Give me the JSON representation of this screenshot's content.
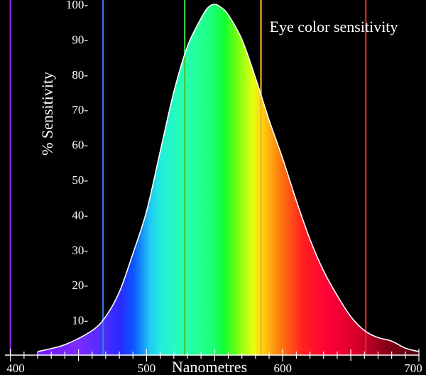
{
  "chart_data": {
    "type": "area",
    "title": "Eye color sensitivity",
    "xlabel": "Nanometres",
    "ylabel": "% Sensitivity",
    "xlim": [
      396,
      700
    ],
    "ylim": [
      0,
      100
    ],
    "x_ticks": [
      400,
      500,
      600,
      700
    ],
    "y_ticks": [
      10,
      20,
      30,
      40,
      50,
      60,
      70,
      80,
      90,
      100
    ],
    "y_tick_labels": [
      "10-",
      "20-",
      "30-",
      "40-",
      "50-",
      "60-",
      "70-",
      "80-",
      "90-",
      "100-"
    ],
    "grid": false,
    "series": [
      {
        "x": [
          420,
          440,
          460,
          470,
          480,
          490,
          500,
          510,
          520,
          530,
          540,
          545,
          550,
          555,
          560,
          570,
          580,
          590,
          600,
          610,
          620,
          630,
          640,
          650,
          660,
          670,
          680,
          690,
          700
        ],
        "values": [
          1,
          3,
          7,
          11,
          18,
          29,
          41,
          58,
          75,
          88,
          96,
          99,
          100,
          99,
          97,
          90,
          79,
          67,
          56,
          44,
          33,
          24,
          17,
          11,
          7,
          5,
          4,
          2,
          1
        ]
      }
    ],
    "reference_lines": [
      {
        "x": 400,
        "color": "#8a2be2"
      },
      {
        "x": 468,
        "color": "#3a78e0"
      },
      {
        "x": 528,
        "color": "#3ec93e"
      },
      {
        "x": 584,
        "color": "#f0b428"
      },
      {
        "x": 661,
        "color": "#e8202e"
      }
    ],
    "colors": {
      "background": "#000000",
      "curve_outline": "#ffffff",
      "axis": "#ffffff"
    }
  }
}
